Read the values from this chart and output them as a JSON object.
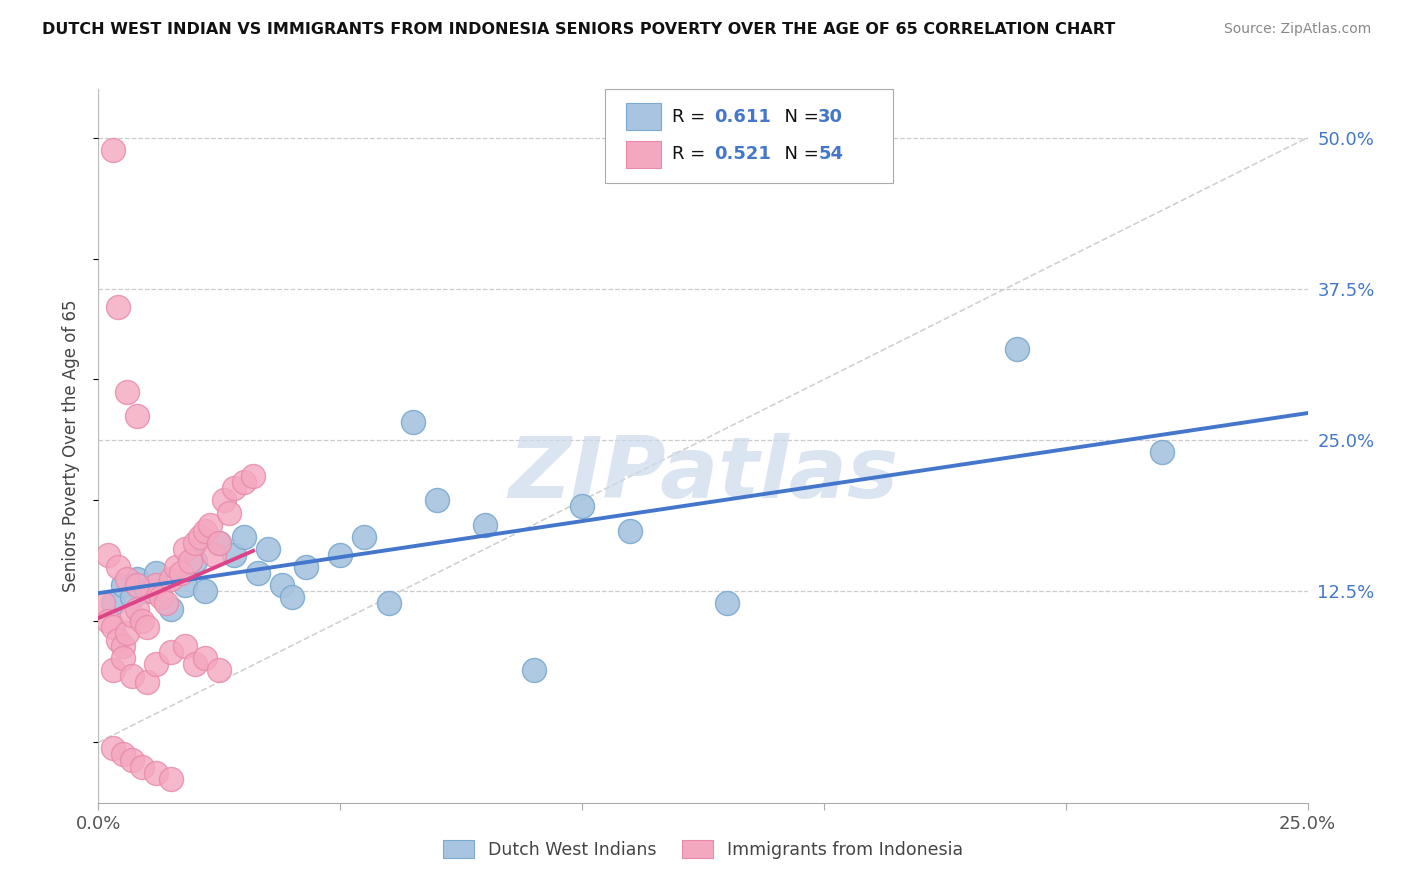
{
  "title": "DUTCH WEST INDIAN VS IMMIGRANTS FROM INDONESIA SENIORS POVERTY OVER THE AGE OF 65 CORRELATION CHART",
  "source": "Source: ZipAtlas.com",
  "ylabel": "Seniors Poverty Over the Age of 65",
  "xlim": [
    0.0,
    0.25
  ],
  "ylim": [
    -0.05,
    0.54
  ],
  "xticks": [
    0.0,
    0.05,
    0.1,
    0.15,
    0.2,
    0.25
  ],
  "xtick_labels": [
    "0.0%",
    "",
    "",
    "",
    "",
    "25.0%"
  ],
  "ytick_labels_right": [
    "50.0%",
    "37.5%",
    "25.0%",
    "12.5%"
  ],
  "yticks_right": [
    0.5,
    0.375,
    0.25,
    0.125
  ],
  "blue_color": "#a8c4e0",
  "pink_color": "#f4a8c0",
  "blue_edge_color": "#7aaad0",
  "pink_edge_color": "#e888aa",
  "blue_line_color": "#4477cc",
  "pink_line_color": "#dd4488",
  "ref_line_color": "#cccccc",
  "watermark_color": "#ccdaec",
  "watermark": "ZIPatlas",
  "label1": "Dutch West Indians",
  "label2": "Immigrants from Indonesia",
  "legend_R1": "0.611",
  "legend_N1": "30",
  "legend_R2": "0.521",
  "legend_N2": "54",
  "legend_num_color": "#4477cc",
  "blue_scatter_x": [
    0.003,
    0.005,
    0.007,
    0.008,
    0.01,
    0.012,
    0.015,
    0.018,
    0.02,
    0.022,
    0.025,
    0.028,
    0.03,
    0.033,
    0.035,
    0.038,
    0.04,
    0.043,
    0.05,
    0.055,
    0.06,
    0.065,
    0.07,
    0.08,
    0.09,
    0.1,
    0.11,
    0.13,
    0.19,
    0.22
  ],
  "blue_scatter_y": [
    0.115,
    0.13,
    0.12,
    0.135,
    0.125,
    0.14,
    0.11,
    0.13,
    0.15,
    0.125,
    0.165,
    0.155,
    0.17,
    0.14,
    0.16,
    0.13,
    0.12,
    0.145,
    0.155,
    0.17,
    0.115,
    0.265,
    0.2,
    0.18,
    0.06,
    0.195,
    0.175,
    0.115,
    0.325,
    0.24
  ],
  "pink_scatter_x": [
    0.001,
    0.002,
    0.003,
    0.004,
    0.005,
    0.006,
    0.007,
    0.008,
    0.009,
    0.01,
    0.011,
    0.012,
    0.013,
    0.014,
    0.015,
    0.016,
    0.017,
    0.018,
    0.019,
    0.02,
    0.021,
    0.022,
    0.023,
    0.024,
    0.025,
    0.026,
    0.027,
    0.028,
    0.03,
    0.032,
    0.003,
    0.005,
    0.007,
    0.01,
    0.012,
    0.015,
    0.018,
    0.02,
    0.022,
    0.025,
    0.003,
    0.005,
    0.007,
    0.009,
    0.012,
    0.015,
    0.003,
    0.004,
    0.006,
    0.008,
    0.002,
    0.004,
    0.006,
    0.008
  ],
  "pink_scatter_y": [
    0.115,
    0.1,
    0.095,
    0.085,
    0.08,
    0.09,
    0.105,
    0.11,
    0.1,
    0.095,
    0.125,
    0.13,
    0.12,
    0.115,
    0.135,
    0.145,
    0.14,
    0.16,
    0.15,
    0.165,
    0.17,
    0.175,
    0.18,
    0.155,
    0.165,
    0.2,
    0.19,
    0.21,
    0.215,
    0.22,
    0.06,
    0.07,
    0.055,
    0.05,
    0.065,
    0.075,
    0.08,
    0.065,
    0.07,
    0.06,
    -0.005,
    -0.01,
    -0.015,
    -0.02,
    -0.025,
    -0.03,
    0.49,
    0.36,
    0.29,
    0.27,
    0.155,
    0.145,
    0.135,
    0.13
  ]
}
